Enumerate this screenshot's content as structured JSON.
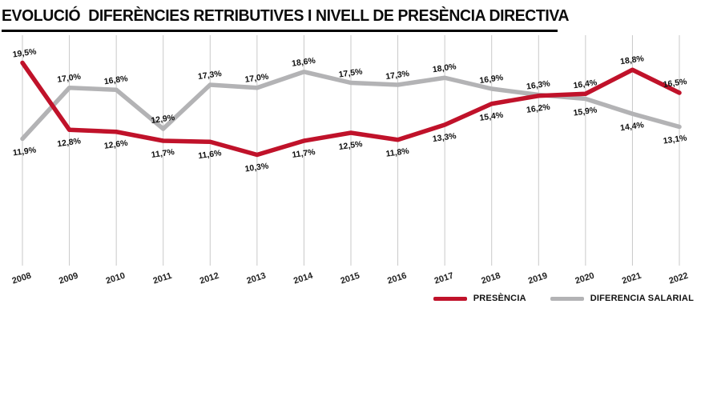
{
  "page": {
    "background": "#ffffff"
  },
  "header": {
    "title": "EVOLUCIÓ  DIFERÈNCIES RETRIBUTIVES I NIVELL DE PRESÈNCIA DIRECTIVA"
  },
  "legend": {
    "items": [
      {
        "label": "PRESÈNCIA",
        "color": "#c0122a"
      },
      {
        "label": "DIFERENCIA SALARIAL",
        "color": "#b3b3b5"
      }
    ]
  },
  "chart_data": {
    "type": "line",
    "title": "EVOLUCIÓ  DIFERÈNCIES RETRIBUTIVES I NIVELL DE PRESÈNCIA DIRECTIVA",
    "x": [
      "2008",
      "2009",
      "2010",
      "2011",
      "2012",
      "2013",
      "2014",
      "2015",
      "2016",
      "2017",
      "2018",
      "2019",
      "2020",
      "2021",
      "2022"
    ],
    "series": [
      {
        "name": "PRESÈNCIA",
        "color": "#c0122a",
        "values": [
          19.5,
          12.8,
          12.6,
          11.7,
          11.6,
          10.3,
          11.7,
          12.5,
          11.8,
          13.3,
          15.4,
          16.2,
          16.4,
          18.8,
          16.5
        ]
      },
      {
        "name": "DIFERENCIA SALARIAL",
        "color": "#b3b3b5",
        "values": [
          11.9,
          17.0,
          16.8,
          12.9,
          17.3,
          17.0,
          18.6,
          17.5,
          17.3,
          18.0,
          16.9,
          16.3,
          15.9,
          14.4,
          13.1
        ]
      }
    ],
    "ylim": [
      9.5,
      20.5
    ],
    "xlabel": "",
    "ylabel": "",
    "grid": "vertical-per-year",
    "grid_color": "#c9c9c9",
    "value_label_format": "comma-decimal-percent",
    "legend_position": "bottom-right"
  }
}
